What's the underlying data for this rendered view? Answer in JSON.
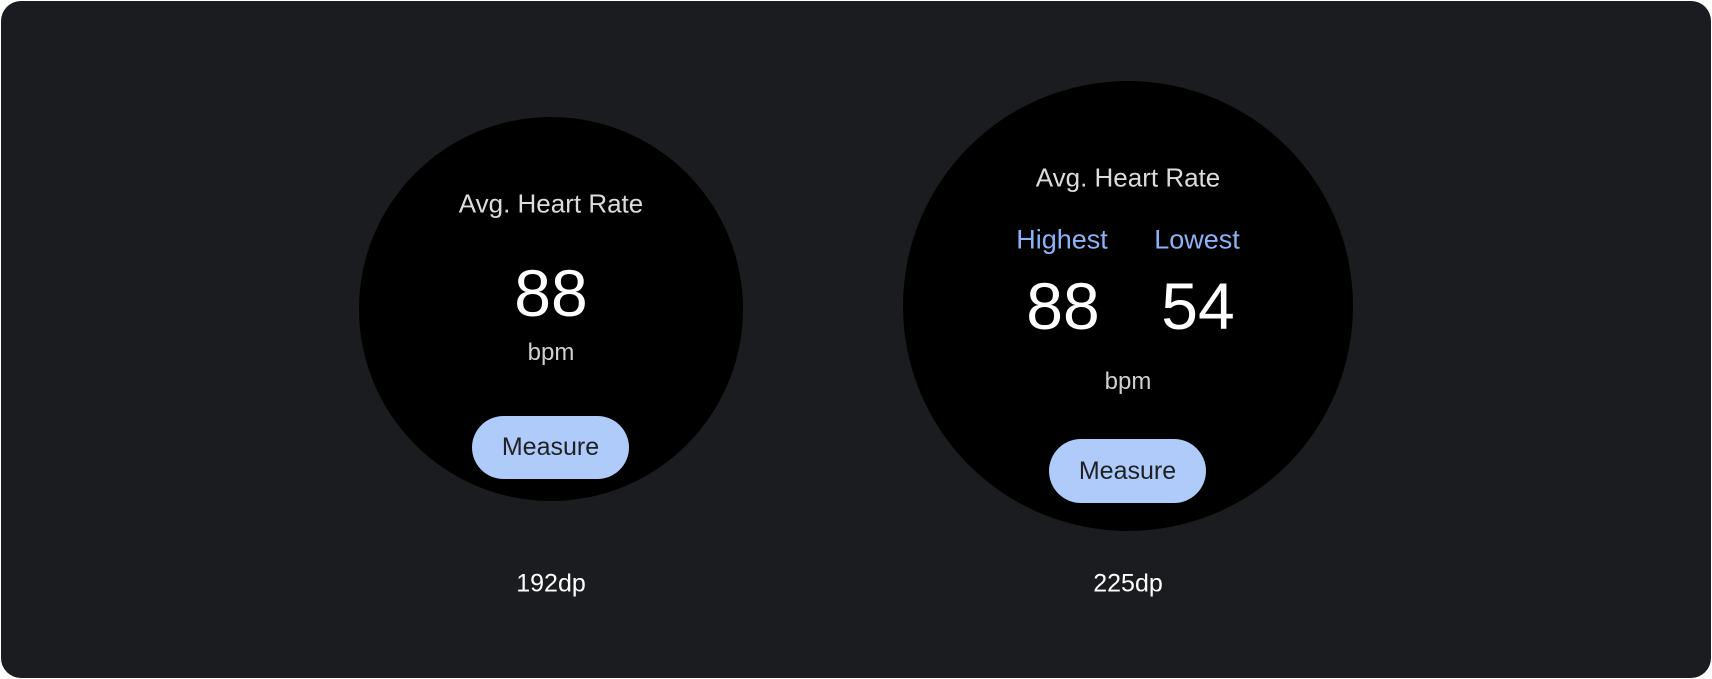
{
  "watches": [
    {
      "title": "Avg. Heart Rate",
      "value": "88",
      "unit": "bpm",
      "button": "Measure",
      "size_label": "192dp"
    },
    {
      "title": "Avg. Heart Rate",
      "highest_label": "Highest",
      "lowest_label": "Lowest",
      "highest_value": "88",
      "lowest_value": "54",
      "unit": "bpm",
      "button": "Measure",
      "size_label": "225dp"
    }
  ],
  "colors": {
    "accent": "#8ab4f8",
    "button": "#aecbfa",
    "background": "#1b1c1f",
    "screen": "#000000"
  }
}
